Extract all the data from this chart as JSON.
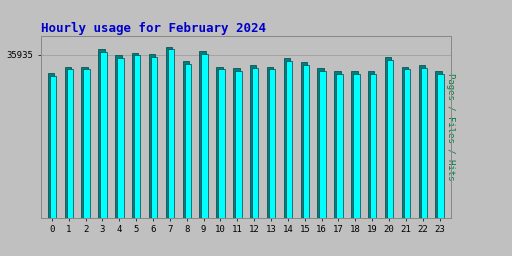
{
  "title": "Hourly usage for February 2024",
  "ylabel": "Pages / Files / Hits",
  "hours": [
    0,
    1,
    2,
    3,
    4,
    5,
    6,
    7,
    8,
    9,
    10,
    11,
    12,
    13,
    14,
    15,
    16,
    17,
    18,
    19,
    20,
    21,
    22,
    23
  ],
  "pages": [
    0.83,
    0.868,
    0.868,
    0.97,
    0.935,
    0.95,
    0.943,
    0.985,
    0.902,
    0.96,
    0.868,
    0.858,
    0.878,
    0.868,
    0.92,
    0.893,
    0.858,
    0.84,
    0.84,
    0.84,
    0.925,
    0.868,
    0.878,
    0.84
  ],
  "hits": [
    0.85,
    0.885,
    0.885,
    0.985,
    0.952,
    0.967,
    0.96,
    1.0,
    0.918,
    0.975,
    0.885,
    0.875,
    0.895,
    0.885,
    0.935,
    0.91,
    0.875,
    0.857,
    0.857,
    0.857,
    0.942,
    0.885,
    0.895,
    0.857
  ],
  "ytick_val": 0.955,
  "ytick_label": "35935",
  "bg_color": "#c0c0c0",
  "bar_color_cyan": "#00ffff",
  "bar_color_teal": "#008080",
  "bar_edge": "#004444",
  "title_color": "#0000cc",
  "ylabel_color": "#008040",
  "tick_color": "#000000",
  "grid_color": "#999999",
  "title_fontsize": 9,
  "ylabel_fontsize": 6.5,
  "tick_fontsize": 6.5
}
